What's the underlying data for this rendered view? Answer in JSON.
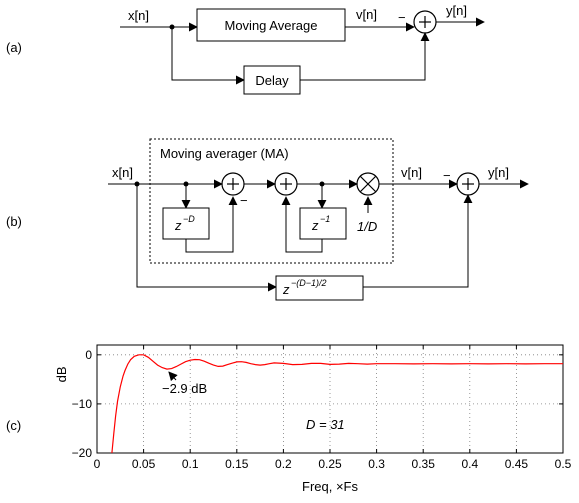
{
  "panel_a": {
    "tag": "(a)",
    "input": "x[n]",
    "block_ma": "Moving Average",
    "v_signal": "v[n]",
    "output": "y[n]",
    "minus": "−",
    "block_delay": "Delay"
  },
  "panel_b": {
    "tag": "(b)",
    "input": "x[n]",
    "ma_label": "Moving averager (MA)",
    "minus_inner": "−",
    "zD": "z",
    "zD_exp": "−D",
    "z1": "z",
    "z1_exp": "−1",
    "gain": "1/D",
    "v_signal": "v[n]",
    "minus_outer": "−",
    "output": "y[n]",
    "delay": "z",
    "delay_exp": "−(D−1)/2"
  },
  "panel_c": {
    "tag": "(c)",
    "annotation": "−2.9 dB",
    "d_label": "D = 31"
  },
  "colors": {
    "curve": "#ff0000",
    "grid": "#7f7f7f"
  },
  "chart_data": {
    "type": "line",
    "xlabel": "Freq, ×Fs",
    "ylabel": "dB",
    "xlim": [
      0,
      0.5
    ],
    "ylim": [
      -20,
      2
    ],
    "xticks": [
      "0",
      "0.05",
      "0.1",
      "0.15",
      "0.2",
      "0.25",
      "0.3",
      "0.35",
      "0.4",
      "0.45",
      "0.5"
    ],
    "yticks": [
      "0",
      "−10",
      "−20"
    ],
    "grid": true,
    "series": [
      {
        "x": [
          0.016,
          0.018,
          0.02,
          0.022,
          0.025,
          0.028,
          0.03,
          0.033,
          0.036,
          0.04,
          0.045,
          0.05,
          0.055,
          0.06,
          0.065,
          0.07,
          0.075,
          0.08,
          0.085,
          0.09,
          0.095,
          0.1,
          0.105,
          0.11,
          0.115,
          0.12,
          0.125,
          0.13,
          0.135,
          0.14,
          0.145,
          0.15,
          0.155,
          0.16,
          0.165,
          0.17,
          0.175,
          0.18,
          0.185,
          0.19,
          0.2,
          0.21,
          0.22,
          0.23,
          0.24,
          0.25,
          0.26,
          0.27,
          0.28,
          0.29,
          0.3,
          0.32,
          0.34,
          0.36,
          0.38,
          0.4,
          0.42,
          0.44,
          0.46,
          0.48,
          0.5
        ],
        "y": [
          -20,
          -16,
          -12.5,
          -9.5,
          -6.5,
          -4.3,
          -3.2,
          -1.9,
          -1.0,
          -0.3,
          0,
          0,
          -0.5,
          -1.3,
          -2.1,
          -2.6,
          -2.9,
          -2.8,
          -2.4,
          -1.9,
          -1.4,
          -1.1,
          -0.95,
          -1.0,
          -1.3,
          -1.7,
          -2.1,
          -2.35,
          -2.3,
          -2.0,
          -1.7,
          -1.45,
          -1.4,
          -1.55,
          -1.8,
          -2.0,
          -2.1,
          -2.0,
          -1.8,
          -1.65,
          -1.75,
          -2.0,
          -1.95,
          -1.75,
          -1.75,
          -1.95,
          -1.9,
          -1.75,
          -1.8,
          -1.9,
          -1.8,
          -1.8,
          -1.85,
          -1.8,
          -1.85,
          -1.8,
          -1.85,
          -1.8,
          -1.85,
          -1.8,
          -1.8
        ]
      }
    ]
  }
}
